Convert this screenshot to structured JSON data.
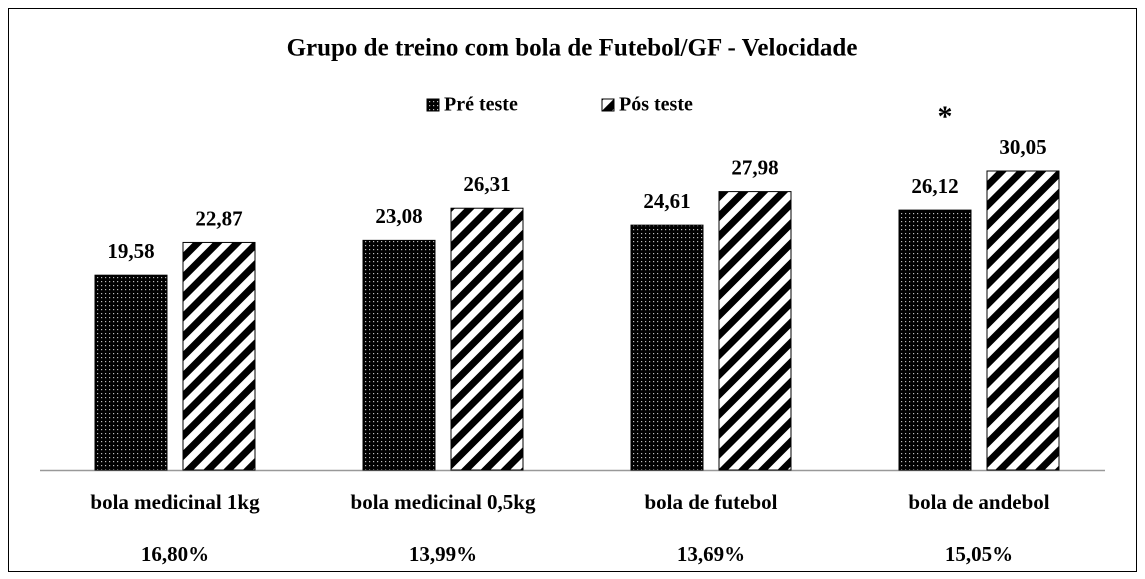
{
  "chart_data": {
    "type": "bar",
    "title": "Grupo de treino com bola de Futebol/GF - Velocidade",
    "categories": [
      "bola medicinal 1kg",
      "bola medicinal 0,5kg",
      "bola de futebol",
      "bola de andebol"
    ],
    "series": [
      {
        "name": "Pré teste",
        "color": "#000000",
        "pattern": "dots",
        "values": [
          19.58,
          23.08,
          24.61,
          26.12
        ],
        "value_labels": [
          "19,58",
          "23,08",
          "24,61",
          "26,12"
        ]
      },
      {
        "name": "Pós teste",
        "color": "#000000",
        "pattern": "stripes",
        "values": [
          22.87,
          26.31,
          27.98,
          30.05
        ],
        "value_labels": [
          "22,87",
          "26,31",
          "27,98",
          "30,05"
        ]
      }
    ],
    "percent_changes": [
      "16,80%",
      "13,99%",
      "13,69%",
      "15,05%"
    ],
    "annotations": [
      {
        "text": "*",
        "category": 3
      }
    ],
    "ylim": [
      0,
      40
    ],
    "legend": "top"
  }
}
